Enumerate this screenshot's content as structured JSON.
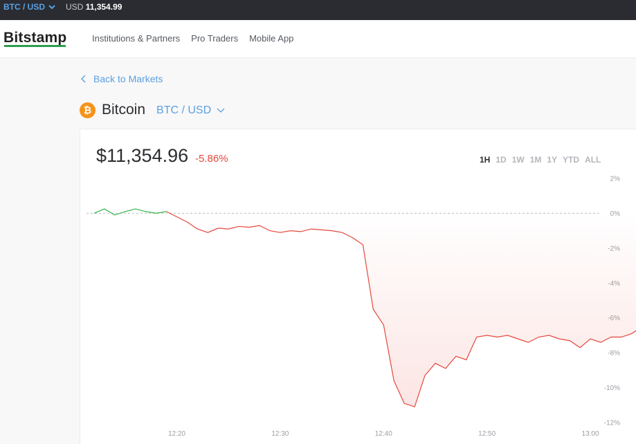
{
  "topbar": {
    "pair": "BTC / USD",
    "ticker_currency": "USD",
    "ticker_price": "11,354.99"
  },
  "header": {
    "logo": "Bitstamp",
    "nav": [
      "Institutions & Partners",
      "Pro Traders",
      "Mobile App"
    ]
  },
  "breadcrumb": {
    "back_label": "Back to Markets"
  },
  "asset": {
    "icon_glyph": "₿",
    "name": "Bitcoin",
    "pair": "BTC / USD"
  },
  "quote": {
    "price": "$11,354.96",
    "change": "-5.86%"
  },
  "periods": {
    "items": [
      "1H",
      "1D",
      "1W",
      "1M",
      "1Y",
      "YTD",
      "ALL"
    ],
    "active": "1H"
  },
  "colors": {
    "positive": "#2fb34a",
    "negative": "#e4473b",
    "accent": "#5b9fdf",
    "bitcoin": "#f7931a"
  },
  "chart_data": {
    "type": "line",
    "xlabel": "",
    "ylabel": "",
    "x_tick_labels": [
      "12:20",
      "12:30",
      "12:40",
      "12:50",
      "13:00"
    ],
    "x_tick_minutes": [
      20,
      30,
      40,
      50,
      60
    ],
    "y_tick_labels": [
      "2%",
      "0%",
      "-2%",
      "-4%",
      "-6%",
      "-8%",
      "-10%",
      "-12%"
    ],
    "y_tick_values": [
      2,
      0,
      -2,
      -4,
      -6,
      -8,
      -10,
      -12
    ],
    "ylim": [
      -12,
      2
    ],
    "xlim_minutes": [
      11,
      61
    ],
    "baseline": 0,
    "grid": false,
    "series": [
      {
        "minutes": [
          12,
          13,
          14,
          15,
          16,
          17,
          18,
          19,
          20,
          21,
          22,
          23,
          24,
          25,
          26,
          27,
          28,
          29,
          30,
          31,
          32,
          33,
          34,
          35,
          36,
          37,
          38,
          39,
          40,
          41,
          42,
          43,
          44,
          45,
          46,
          47,
          48,
          49,
          50,
          51,
          52,
          53,
          54,
          55,
          56,
          57,
          58,
          59,
          60,
          61,
          62,
          63,
          64,
          65,
          66,
          67,
          68,
          69,
          70
        ],
        "values": [
          0.0,
          0.25,
          -0.1,
          0.1,
          0.25,
          0.1,
          0.0,
          0.1,
          -0.2,
          -0.5,
          -0.9,
          -1.1,
          -0.85,
          -0.9,
          -0.75,
          -0.8,
          -0.7,
          -1.0,
          -1.1,
          -1.0,
          -1.05,
          -0.9,
          -0.95,
          -1.0,
          -1.1,
          -1.4,
          -1.8,
          -5.5,
          -6.4,
          -9.6,
          -10.9,
          -11.1,
          -9.3,
          -8.6,
          -8.9,
          -8.2,
          -8.4,
          -7.1,
          -7.0,
          -7.1,
          -7.0,
          -7.2,
          -7.4,
          -7.1,
          -7.0,
          -7.2,
          -7.3,
          -7.7,
          -7.2,
          -7.4,
          -7.1,
          -7.1,
          -6.9,
          -6.5,
          -6.0,
          -5.9,
          -5.85,
          -5.9,
          -5.86
        ]
      }
    ]
  }
}
